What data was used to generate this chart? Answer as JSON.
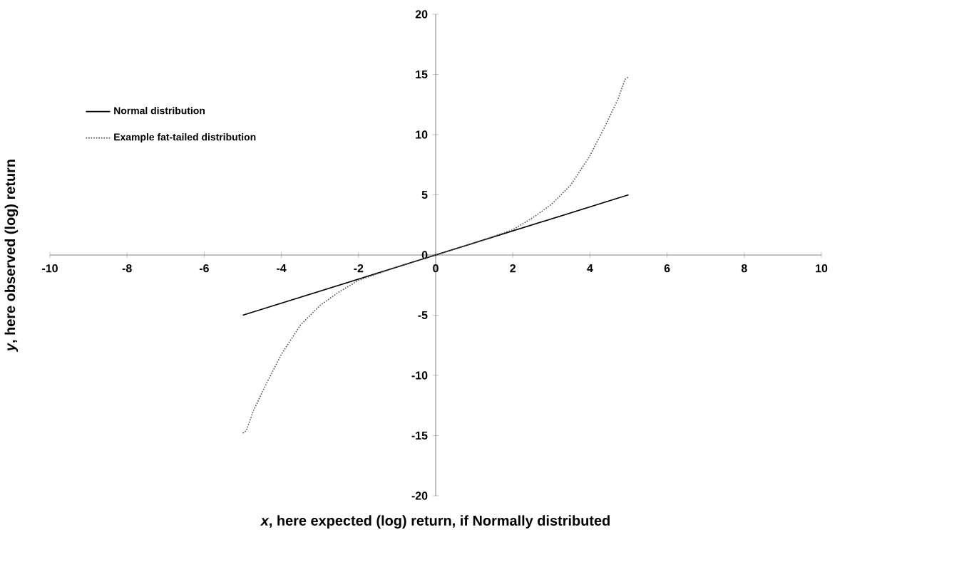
{
  "chart_data": {
    "type": "line",
    "xlabel": "*x*, here expected (log) return, if Normally distributed",
    "ylabel": "*y*, here observed (log) return",
    "xlim": [
      -10,
      10
    ],
    "xticks": [
      -10,
      -8,
      -6,
      -4,
      -2,
      0,
      2,
      4,
      6,
      8,
      10
    ],
    "ylim": [
      -20,
      20
    ],
    "yticks": [
      -20,
      -15,
      -10,
      -5,
      0,
      5,
      10,
      15,
      20
    ],
    "legend": "top left",
    "grid": false,
    "marker": "none",
    "series": [
      {
        "name": "Normal distribution",
        "color": "#000000",
        "line_style": "solid",
        "x": [
          -5,
          5
        ],
        "values": [
          -5,
          5
        ]
      },
      {
        "name": "Example fat-tailed distribution",
        "color": "#505050",
        "line_style": "dotted",
        "x": [
          -5,
          -4.91,
          -4.72,
          -4.36,
          -3.99,
          -3.5,
          -3.0,
          -2.52,
          -2.0,
          -1,
          0,
          1,
          2.0,
          2.52,
          3.0,
          3.5,
          3.99,
          4.36,
          4.72,
          4.91,
          5
        ],
        "values": [
          -14.8,
          -14.6,
          -12.9,
          -10.5,
          -8.2,
          -5.8,
          -4.2,
          -3.1,
          -2.1,
          -1,
          0,
          1,
          2.1,
          3.1,
          4.2,
          5.8,
          8.2,
          10.5,
          12.9,
          14.6,
          14.8
        ]
      }
    ]
  }
}
